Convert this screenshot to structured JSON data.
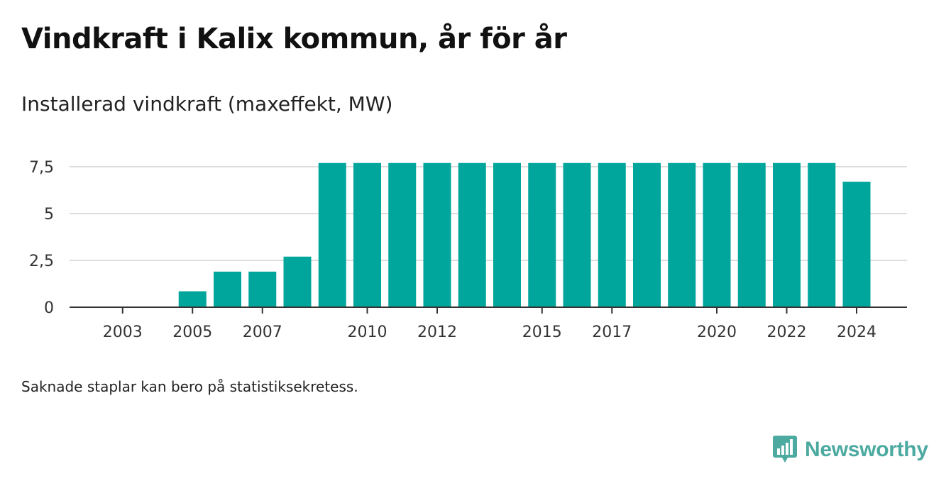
{
  "title": "Vindkraft i Kalix kommun, år för år",
  "subtitle": "Installerad vindkraft (maxeffekt, MW)",
  "note": "Saknade staplar kan bero på statistiksekretess.",
  "brand": {
    "name": "Newsworthy",
    "icon": "newsworthy-logo-icon",
    "color": "#4caaa0"
  },
  "colors": {
    "bar": "#00a69c",
    "grid": "#dddddd",
    "axis": "#333333"
  },
  "chart_data": {
    "type": "bar",
    "title": "Vindkraft i Kalix kommun, år för år",
    "subtitle": "Installerad vindkraft (maxeffekt, MW)",
    "xlabel": "",
    "ylabel": "",
    "categories": [
      2002,
      2003,
      2004,
      2005,
      2006,
      2007,
      2008,
      2009,
      2010,
      2011,
      2012,
      2013,
      2014,
      2015,
      2016,
      2017,
      2018,
      2019,
      2020,
      2021,
      2022,
      2023,
      2024
    ],
    "values": [
      null,
      null,
      null,
      0.85,
      1.9,
      1.9,
      2.7,
      7.7,
      7.7,
      7.7,
      7.7,
      7.7,
      7.7,
      7.7,
      7.7,
      7.7,
      7.7,
      7.7,
      7.7,
      7.7,
      7.7,
      7.7,
      6.7
    ],
    "ylim": [
      0,
      7.5
    ],
    "yticks": [
      0,
      2.5,
      5,
      7.5
    ],
    "ytick_labels": [
      "0",
      "2,5",
      "5",
      "7,5"
    ],
    "xticks": [
      2003,
      2005,
      2007,
      2010,
      2012,
      2015,
      2017,
      2020,
      2022,
      2024
    ],
    "xtick_labels": [
      "2003",
      "2005",
      "2007",
      "2010",
      "2012",
      "2015",
      "2017",
      "2020",
      "2022",
      "2024"
    ],
    "grid": true,
    "legend": "none"
  }
}
